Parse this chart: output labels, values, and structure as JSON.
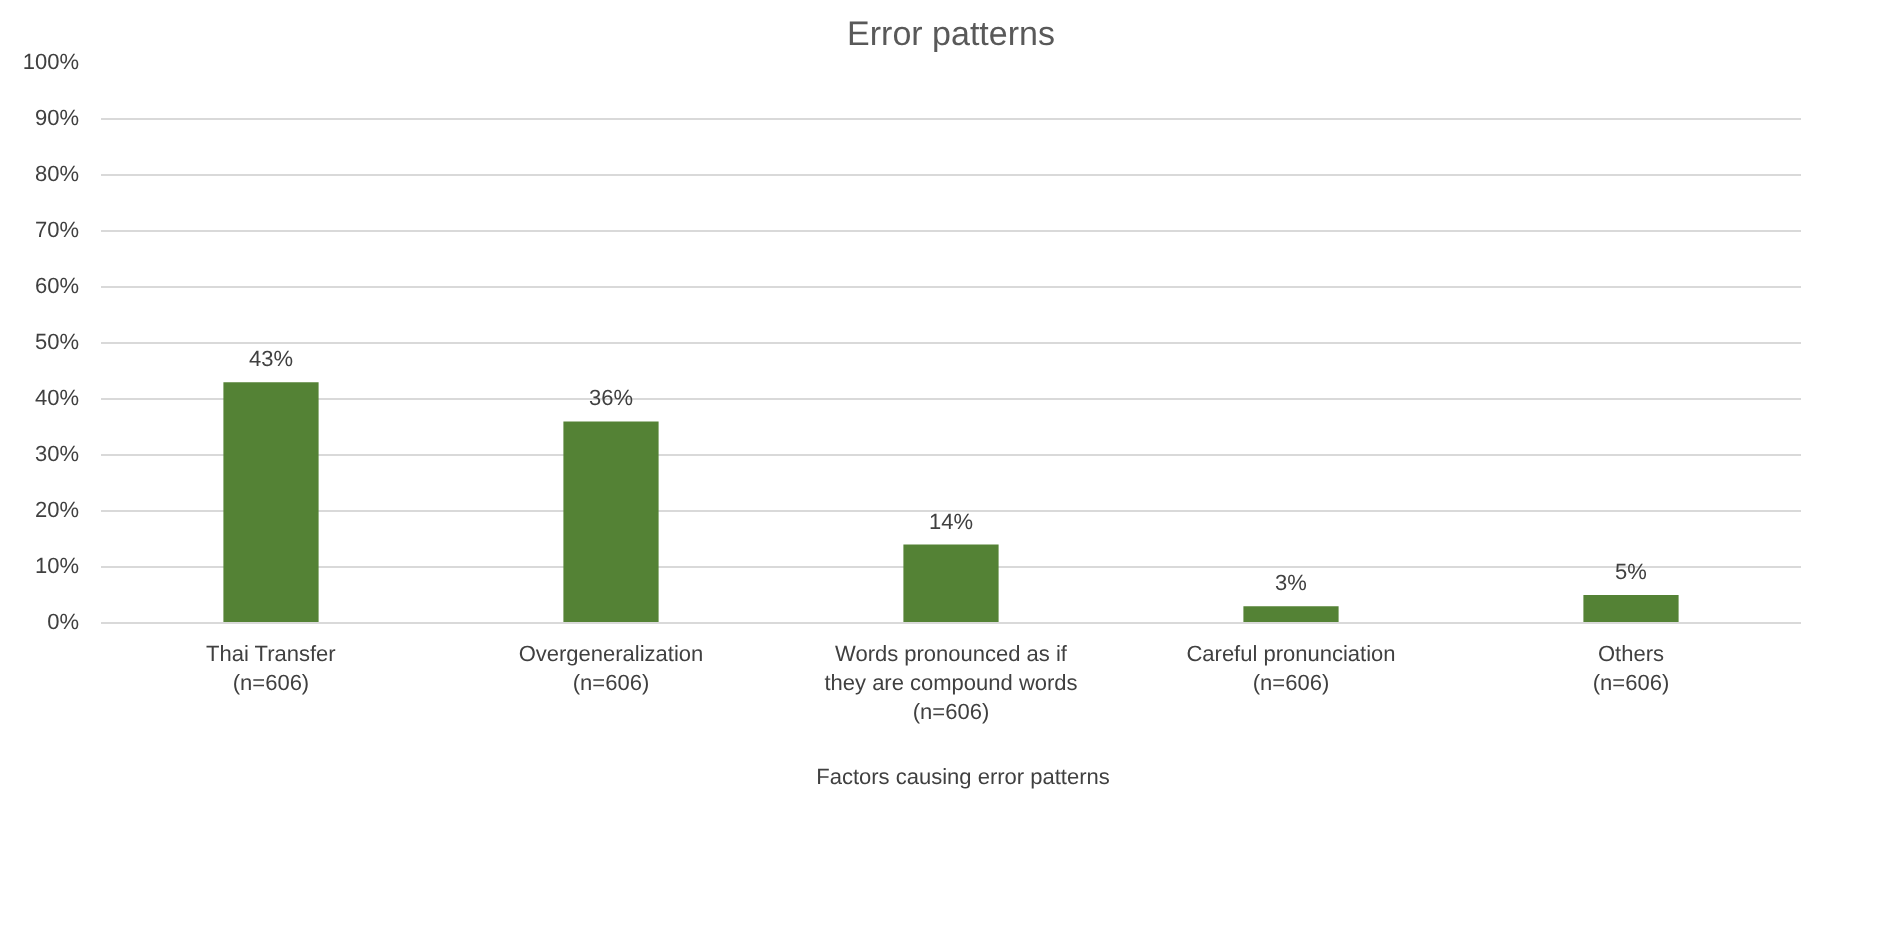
{
  "chart_data": {
    "type": "bar",
    "title": "Error patterns",
    "categories": [
      "Thai Transfer\n(n=606)",
      "Overgeneralization\n(n=606)",
      "Words pronounced as if\nthey are compound words\n(n=606)",
      "Careful pronunciation\n(n=606)",
      "Others\n(n=606)"
    ],
    "series": [
      {
        "name": "Factors causing error patterns",
        "color": "#548235",
        "values": [
          43,
          36,
          14,
          3,
          5
        ]
      }
    ],
    "value_labels": [
      "43%",
      "36%",
      "14%",
      "3%",
      "5%"
    ],
    "ylim": [
      0,
      100
    ],
    "yticks": [
      {
        "value": 0,
        "label": "0%"
      },
      {
        "value": 10,
        "label": "10%"
      },
      {
        "value": 20,
        "label": "20%"
      },
      {
        "value": 30,
        "label": "30%"
      },
      {
        "value": 40,
        "label": "40%"
      },
      {
        "value": 50,
        "label": "50%"
      },
      {
        "value": 60,
        "label": "60%"
      },
      {
        "value": 70,
        "label": "70%"
      },
      {
        "value": 80,
        "label": "80%"
      },
      {
        "value": 90,
        "label": "90%"
      },
      {
        "value": 100,
        "label": "100%"
      }
    ],
    "grid": "y",
    "legend": "bottom"
  }
}
